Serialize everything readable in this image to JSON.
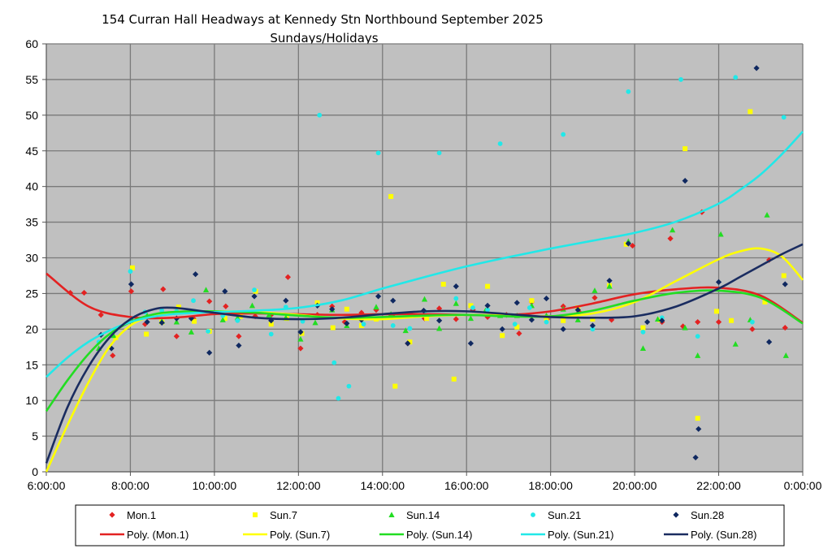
{
  "chart_data": {
    "type": "scatter",
    "title": "154 Curran Hall Headways at Kennedy Stn Northbound September 2025",
    "subtitle": "Sundays/Holidays",
    "xlabel": "",
    "ylabel": "",
    "x_unit": "hours",
    "xlim": [
      6,
      24
    ],
    "ylim": [
      0,
      60
    ],
    "x_ticks": [
      6,
      8,
      10,
      12,
      14,
      16,
      18,
      20,
      22,
      24
    ],
    "x_tick_labels": [
      "6:00:00",
      "8:00:00",
      "10:00:00",
      "12:00:00",
      "14:00:00",
      "16:00:00",
      "18:00:00",
      "20:00:00",
      "22:00:00",
      "0:00:00"
    ],
    "y_ticks": [
      0,
      5,
      10,
      15,
      20,
      25,
      30,
      35,
      40,
      45,
      50,
      55,
      60
    ],
    "grid": true,
    "background": "#c0c0c0",
    "legend_position": "bottom",
    "series": [
      {
        "name": "Mon.1",
        "marker": "diamond",
        "color": "#e32222",
        "points": [
          [
            6.57,
            25.1
          ],
          [
            6.9,
            25.1
          ],
          [
            7.3,
            22
          ],
          [
            7.58,
            16.3
          ],
          [
            8.02,
            25.3
          ],
          [
            8.35,
            20.7
          ],
          [
            8.78,
            25.6
          ],
          [
            9.1,
            19
          ],
          [
            9.5,
            21.5
          ],
          [
            9.88,
            23.9
          ],
          [
            10.27,
            23.2
          ],
          [
            10.58,
            19
          ],
          [
            10.97,
            21.8
          ],
          [
            11.35,
            22
          ],
          [
            11.75,
            27.3
          ],
          [
            12.05,
            17.3
          ],
          [
            12.45,
            22
          ],
          [
            12.8,
            23.2
          ],
          [
            13.1,
            21
          ],
          [
            13.5,
            22.3
          ],
          [
            13.85,
            22.7
          ],
          [
            14.25,
            21.8
          ],
          [
            14.6,
            18
          ],
          [
            15.0,
            21.5
          ],
          [
            15.35,
            22.9
          ],
          [
            15.75,
            21.4
          ],
          [
            16.15,
            22.7
          ],
          [
            16.5,
            21.7
          ],
          [
            16.95,
            22
          ],
          [
            17.25,
            19.4
          ],
          [
            17.55,
            23.8
          ],
          [
            17.92,
            21.4
          ],
          [
            18.3,
            23.2
          ],
          [
            18.68,
            22.4
          ],
          [
            19.05,
            24.4
          ],
          [
            19.45,
            21.3
          ],
          [
            19.95,
            31.7
          ],
          [
            20.65,
            21
          ],
          [
            20.85,
            32.7
          ],
          [
            21.15,
            20.4
          ],
          [
            21.5,
            21
          ],
          [
            21.6,
            36.4
          ],
          [
            22.0,
            21
          ],
          [
            22.8,
            20
          ],
          [
            23.2,
            29.7
          ],
          [
            23.58,
            20.2
          ]
        ]
      },
      {
        "name": "Sun.7",
        "marker": "square",
        "color": "#ffff00",
        "points": [
          [
            7.65,
            18.8
          ],
          [
            8.05,
            28.6
          ],
          [
            8.38,
            19.3
          ],
          [
            8.75,
            21
          ],
          [
            9.15,
            23.1
          ],
          [
            9.52,
            21.1
          ],
          [
            9.88,
            19.7
          ],
          [
            10.25,
            21.5
          ],
          [
            10.62,
            21.8
          ],
          [
            10.98,
            25.3
          ],
          [
            11.35,
            20.7
          ],
          [
            11.72,
            21.5
          ],
          [
            12.08,
            19.4
          ],
          [
            12.45,
            23.7
          ],
          [
            12.82,
            20.2
          ],
          [
            13.15,
            22.8
          ],
          [
            13.5,
            20.5
          ],
          [
            13.85,
            21.4
          ],
          [
            14.2,
            38.6
          ],
          [
            14.3,
            12
          ],
          [
            14.65,
            18.2
          ],
          [
            15.05,
            21.5
          ],
          [
            15.45,
            26.3
          ],
          [
            15.7,
            13
          ],
          [
            16.1,
            23.3
          ],
          [
            16.5,
            26
          ],
          [
            16.85,
            19.1
          ],
          [
            17.2,
            20.3
          ],
          [
            17.55,
            24
          ],
          [
            17.9,
            21.5
          ],
          [
            18.3,
            21.2
          ],
          [
            18.65,
            23
          ],
          [
            19.0,
            21.4
          ],
          [
            19.4,
            26.1
          ],
          [
            19.8,
            31.9
          ],
          [
            20.2,
            20.2
          ],
          [
            20.6,
            21.3
          ],
          [
            21.2,
            45.3
          ],
          [
            21.5,
            7.5
          ],
          [
            21.95,
            22.5
          ],
          [
            22.3,
            21.2
          ],
          [
            22.75,
            50.5
          ],
          [
            23.1,
            23.8
          ],
          [
            23.55,
            27.5
          ]
        ]
      },
      {
        "name": "Sun.14",
        "marker": "triangle",
        "color": "#22dd22",
        "points": [
          [
            7.25,
            17.3
          ],
          [
            7.6,
            19.1
          ],
          [
            8.05,
            21.2
          ],
          [
            8.4,
            21.9
          ],
          [
            8.75,
            21.1
          ],
          [
            9.1,
            21
          ],
          [
            9.45,
            19.6
          ],
          [
            9.8,
            25.5
          ],
          [
            10.2,
            21.3
          ],
          [
            10.55,
            21.6
          ],
          [
            10.9,
            23.3
          ],
          [
            11.3,
            22
          ],
          [
            11.7,
            21.6
          ],
          [
            12.05,
            18.6
          ],
          [
            12.4,
            20.9
          ],
          [
            12.8,
            22.7
          ],
          [
            13.15,
            20.5
          ],
          [
            13.5,
            21.6
          ],
          [
            13.85,
            23.1
          ],
          [
            14.2,
            22.1
          ],
          [
            14.55,
            19.8
          ],
          [
            15.0,
            24.2
          ],
          [
            15.35,
            20.1
          ],
          [
            15.75,
            23.6
          ],
          [
            16.1,
            21.5
          ],
          [
            16.45,
            22.6
          ],
          [
            16.8,
            21.9
          ],
          [
            17.2,
            21.9
          ],
          [
            17.55,
            23.3
          ],
          [
            17.9,
            21.9
          ],
          [
            18.3,
            22.8
          ],
          [
            18.65,
            21.3
          ],
          [
            19.05,
            25.4
          ],
          [
            19.4,
            26
          ],
          [
            19.85,
            32.3
          ],
          [
            20.2,
            17.3
          ],
          [
            20.55,
            21.4
          ],
          [
            20.9,
            33.9
          ],
          [
            21.2,
            20.2
          ],
          [
            21.5,
            16.3
          ],
          [
            22.05,
            33.3
          ],
          [
            22.4,
            17.9
          ],
          [
            22.75,
            21.3
          ],
          [
            23.15,
            36
          ],
          [
            23.6,
            16.3
          ]
        ]
      },
      {
        "name": "Sun.21",
        "marker": "circle",
        "color": "#22e8e8",
        "points": [
          [
            7.25,
            18.2
          ],
          [
            7.65,
            19.9
          ],
          [
            8.0,
            28.1
          ],
          [
            8.35,
            22.4
          ],
          [
            8.75,
            22.6
          ],
          [
            9.1,
            22.5
          ],
          [
            9.5,
            24
          ],
          [
            9.85,
            19.7
          ],
          [
            10.2,
            21.9
          ],
          [
            10.55,
            21.2
          ],
          [
            10.95,
            25.5
          ],
          [
            11.35,
            19.3
          ],
          [
            11.7,
            23.1
          ],
          [
            12.1,
            21.1
          ],
          [
            12.5,
            50
          ],
          [
            12.85,
            15.3
          ],
          [
            12.95,
            10.3
          ],
          [
            13.2,
            12
          ],
          [
            13.55,
            20.7
          ],
          [
            13.9,
            44.7
          ],
          [
            14.25,
            20.5
          ],
          [
            14.65,
            20.1
          ],
          [
            15.0,
            22.5
          ],
          [
            15.35,
            44.7
          ],
          [
            15.75,
            24.3
          ],
          [
            16.15,
            23
          ],
          [
            16.5,
            22.7
          ],
          [
            16.8,
            46
          ],
          [
            17.15,
            20.7
          ],
          [
            17.5,
            23
          ],
          [
            17.9,
            21
          ],
          [
            18.3,
            47.3
          ],
          [
            18.65,
            22.1
          ],
          [
            19.0,
            20
          ],
          [
            19.85,
            53.3
          ],
          [
            20.2,
            19.6
          ],
          [
            20.65,
            21.6
          ],
          [
            21.1,
            55
          ],
          [
            21.5,
            19
          ],
          [
            22.4,
            55.3
          ],
          [
            22.8,
            21
          ],
          [
            23.55,
            49.7
          ]
        ]
      },
      {
        "name": "Sun.28",
        "marker": "diamond",
        "color": "#0f2860",
        "points": [
          [
            7.3,
            19.2
          ],
          [
            7.55,
            17.3
          ],
          [
            8.02,
            26.3
          ],
          [
            8.4,
            21
          ],
          [
            8.75,
            20.9
          ],
          [
            9.1,
            21.5
          ],
          [
            9.45,
            21.5
          ],
          [
            9.55,
            27.7
          ],
          [
            9.88,
            16.7
          ],
          [
            10.25,
            25.3
          ],
          [
            10.58,
            17.7
          ],
          [
            10.95,
            24.6
          ],
          [
            11.35,
            21.2
          ],
          [
            11.7,
            24
          ],
          [
            12.05,
            19.6
          ],
          [
            12.45,
            23.3
          ],
          [
            12.8,
            22.8
          ],
          [
            13.15,
            20.8
          ],
          [
            13.5,
            21.3
          ],
          [
            13.9,
            24.6
          ],
          [
            14.25,
            24
          ],
          [
            14.6,
            18
          ],
          [
            14.98,
            22.6
          ],
          [
            15.35,
            21.2
          ],
          [
            15.75,
            26
          ],
          [
            16.1,
            18
          ],
          [
            16.5,
            23.3
          ],
          [
            16.85,
            20
          ],
          [
            17.2,
            23.7
          ],
          [
            17.55,
            21.3
          ],
          [
            17.9,
            24.3
          ],
          [
            18.3,
            20
          ],
          [
            18.65,
            22.7
          ],
          [
            19.0,
            20.5
          ],
          [
            19.4,
            26.8
          ],
          [
            19.85,
            32
          ],
          [
            20.3,
            21
          ],
          [
            20.65,
            21.2
          ],
          [
            21.2,
            40.8
          ],
          [
            21.45,
            2
          ],
          [
            21.52,
            6
          ],
          [
            22.0,
            26.6
          ],
          [
            22.9,
            56.6
          ],
          [
            23.2,
            18.2
          ],
          [
            23.58,
            26.3
          ]
        ]
      }
    ],
    "trendlines": [
      {
        "name": "Poly. (Mon.1)",
        "color": "#e32222",
        "x": [
          6,
          7,
          8,
          9,
          10,
          11,
          12,
          13,
          14,
          15,
          16,
          17,
          18,
          19,
          20,
          21,
          22,
          23,
          24
        ],
        "y": [
          27.8,
          23.2,
          21.7,
          21.6,
          22.1,
          22.2,
          22.1,
          22.0,
          22.1,
          22.1,
          22.0,
          22.0,
          22.5,
          23.6,
          24.9,
          25.6,
          25.8,
          24.7,
          20.9
        ]
      },
      {
        "name": "Poly. (Sun.7)",
        "color": "#ffff00",
        "x": [
          6,
          6.5,
          7,
          7.5,
          8,
          8.5,
          9,
          10,
          11,
          12,
          13,
          14,
          15,
          16,
          17,
          18,
          19,
          20,
          21,
          22,
          22.5,
          23,
          23.5,
          24
        ],
        "y": [
          0,
          6.5,
          12.5,
          17.5,
          20.5,
          21.8,
          22.2,
          22.5,
          22.4,
          22.0,
          21.5,
          21.4,
          21.8,
          22.0,
          21.9,
          21.8,
          22.2,
          23.8,
          26.8,
          29.8,
          30.9,
          31.3,
          30.2,
          26.9
        ]
      },
      {
        "name": "Poly. (Sun.14)",
        "color": "#22dd22",
        "x": [
          6,
          6.5,
          7,
          7.5,
          8,
          8.5,
          9,
          10,
          11,
          12,
          13,
          14,
          15,
          16,
          17,
          18,
          19,
          20,
          21,
          22,
          23,
          24
        ],
        "y": [
          8.5,
          12.8,
          16.5,
          19.3,
          21.0,
          22.0,
          22.4,
          22.5,
          22.3,
          21.9,
          21.6,
          21.7,
          21.9,
          22.0,
          21.8,
          21.8,
          22.6,
          24.0,
          25.1,
          25.4,
          24.4,
          20.8
        ]
      },
      {
        "name": "Poly. (Sun.21)",
        "color": "#22e8e8",
        "x": [
          6,
          6.5,
          7,
          7.5,
          8,
          8.5,
          9,
          10,
          11,
          12,
          13,
          14,
          15,
          16,
          17,
          18,
          19,
          20,
          21,
          22,
          22.5,
          23,
          23.5,
          24
        ],
        "y": [
          13.3,
          16.0,
          18.2,
          19.8,
          21.0,
          21.7,
          22.1,
          22.4,
          22.6,
          23.0,
          24.0,
          25.7,
          27.3,
          28.8,
          30.1,
          31.3,
          32.4,
          33.5,
          35.1,
          37.6,
          39.5,
          41.7,
          44.5,
          47.7
        ]
      },
      {
        "name": "Poly. (Sun.28)",
        "color": "#1a2c60",
        "x": [
          6,
          6.5,
          7,
          7.5,
          8,
          8.5,
          9,
          10,
          11,
          12,
          13,
          14,
          15,
          16,
          17,
          18,
          19,
          20,
          21,
          22,
          22.5,
          23,
          23.5,
          24
        ],
        "y": [
          1.2,
          9.0,
          14.7,
          18.8,
          21.4,
          22.7,
          23.0,
          22.3,
          21.6,
          21.4,
          21.6,
          22.1,
          22.5,
          22.5,
          22.1,
          21.7,
          21.6,
          21.8,
          23.2,
          25.7,
          27.3,
          28.9,
          30.5,
          31.9
        ]
      }
    ]
  }
}
